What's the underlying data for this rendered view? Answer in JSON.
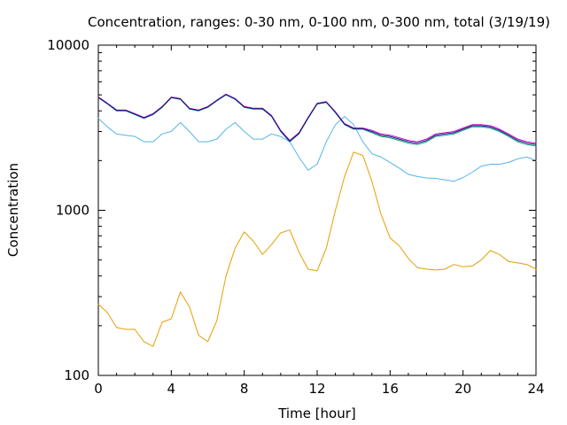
{
  "chart_data": {
    "type": "line",
    "title": "Concentration, ranges: 0-30 nm, 0-100 nm, 0-300 nm, total (3/19/19)",
    "xlabel": "Time [hour]",
    "ylabel": "Concentration",
    "xlim": [
      0,
      24
    ],
    "ylim": [
      100,
      10000
    ],
    "yscale": "log",
    "grid": false,
    "x_ticks": [
      0,
      4,
      8,
      12,
      16,
      20,
      24
    ],
    "x_tick_labels": [
      "0",
      "4",
      "8",
      "12",
      "16",
      "20",
      "24"
    ],
    "y_ticks": [
      100,
      1000,
      10000
    ],
    "y_tick_labels": [
      "100",
      "1000",
      "10000"
    ],
    "x": [
      0,
      0.5,
      1,
      1.5,
      2,
      2.5,
      3,
      3.5,
      4,
      4.5,
      5,
      5.5,
      6,
      6.5,
      7,
      7.5,
      8,
      8.5,
      9,
      9.5,
      10,
      10.5,
      11,
      11.5,
      12,
      12.5,
      13,
      13.5,
      14,
      14.5,
      15,
      15.5,
      16,
      16.5,
      17,
      17.5,
      18,
      18.5,
      19,
      19.5,
      20,
      20.5,
      21,
      21.5,
      22,
      22.5,
      23,
      23.5,
      24
    ],
    "series": [
      {
        "color": "#e69f00",
        "values": [
          270,
          240,
          195,
          190,
          190,
          160,
          150,
          210,
          220,
          320,
          260,
          175,
          160,
          215,
          400,
          590,
          740,
          650,
          540,
          620,
          730,
          760,
          560,
          440,
          430,
          590,
          1000,
          1600,
          2250,
          2150,
          1500,
          950,
          680,
          610,
          510,
          450,
          440,
          435,
          440,
          470,
          455,
          460,
          500,
          570,
          540,
          490,
          480,
          470,
          440
        ]
      },
      {
        "color": "#56b4e9",
        "values": [
          3600,
          3200,
          2900,
          2850,
          2800,
          2600,
          2600,
          2900,
          3000,
          3400,
          3000,
          2600,
          2600,
          2700,
          3100,
          3400,
          3000,
          2700,
          2700,
          2900,
          2800,
          2600,
          2100,
          1750,
          1900,
          2600,
          3300,
          3700,
          3300,
          2600,
          2200,
          2100,
          1950,
          1800,
          1650,
          1600,
          1570,
          1560,
          1530,
          1500,
          1580,
          1700,
          1850,
          1900,
          1900,
          1950,
          2050,
          2100,
          2000
        ]
      },
      {
        "color": "#009e73",
        "values": [
          4800,
          4400,
          4000,
          4000,
          3800,
          3600,
          3800,
          4200,
          4800,
          4700,
          4100,
          4000,
          4200,
          4600,
          5000,
          4700,
          4200,
          4100,
          4100,
          3700,
          3000,
          2600,
          2900,
          3600,
          4400,
          4500,
          3900,
          3300,
          3100,
          3100,
          2950,
          2800,
          2750,
          2650,
          2550,
          2500,
          2600,
          2800,
          2850,
          2900,
          3050,
          3200,
          3200,
          3150,
          3000,
          2800,
          2600,
          2500,
          2450
        ]
      },
      {
        "color": "#cc00cc",
        "values": [
          4850,
          4450,
          4050,
          4050,
          3850,
          3650,
          3850,
          4250,
          4850,
          4750,
          4150,
          4050,
          4250,
          4650,
          5050,
          4750,
          4250,
          4150,
          4150,
          3750,
          3050,
          2650,
          2950,
          3650,
          4450,
          4550,
          3950,
          3350,
          3150,
          3150,
          3050,
          2900,
          2850,
          2750,
          2650,
          2600,
          2700,
          2900,
          2950,
          3000,
          3150,
          3300,
          3300,
          3250,
          3100,
          2900,
          2700,
          2600,
          2550
        ]
      },
      {
        "color": "#0a1a80",
        "values": [
          4820,
          4420,
          4020,
          4020,
          3820,
          3620,
          3820,
          4220,
          4820,
          4720,
          4120,
          4020,
          4220,
          4620,
          5020,
          4720,
          4220,
          4120,
          4120,
          3720,
          3020,
          2620,
          2920,
          3620,
          4420,
          4520,
          3920,
          3320,
          3120,
          3120,
          3000,
          2850,
          2800,
          2700,
          2600,
          2550,
          2650,
          2850,
          2900,
          2950,
          3100,
          3250,
          3250,
          3200,
          3050,
          2850,
          2650,
          2550,
          2500
        ]
      }
    ]
  }
}
